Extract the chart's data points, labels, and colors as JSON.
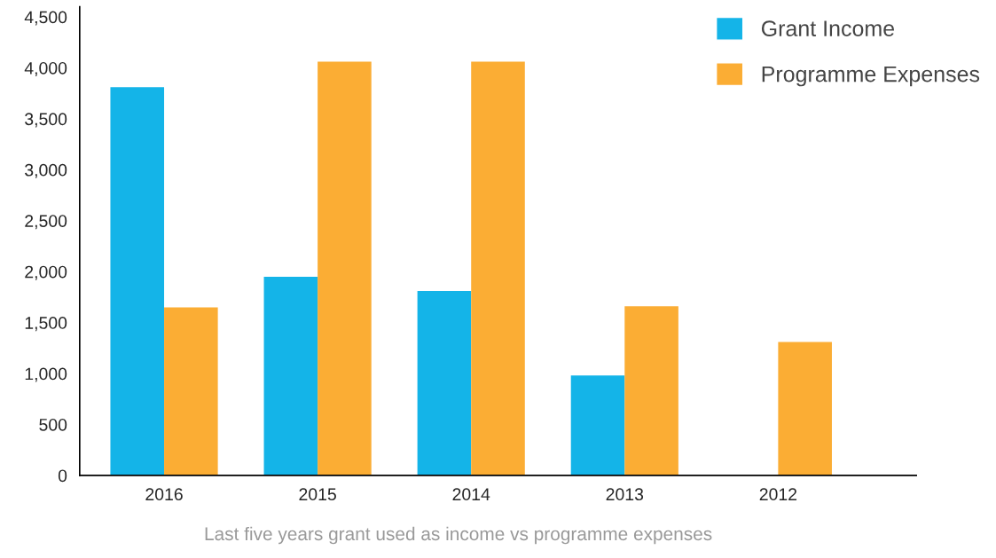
{
  "chart_data": {
    "type": "bar",
    "categories": [
      "2016",
      "2015",
      "2014",
      "2013",
      "2012"
    ],
    "series": [
      {
        "name": "Grant Income",
        "color": "#14b4e8",
        "values": [
          3810,
          1950,
          1810,
          980,
          0
        ]
      },
      {
        "name": "Programme Expenses",
        "color": "#fbad34",
        "values": [
          1650,
          4060,
          4060,
          1660,
          1310
        ]
      }
    ],
    "ylim": [
      0,
      4600
    ],
    "yticks": [
      0,
      500,
      {
        "value": 1000,
        "label": "1,000"
      },
      {
        "value": 1500,
        "label": "1,500"
      },
      {
        "value": 2000,
        "label": "2,000"
      },
      {
        "value": 2500,
        "label": "2,500"
      },
      {
        "value": 3000,
        "label": "3,000"
      },
      {
        "value": 3500,
        "label": "3,500"
      },
      {
        "value": 4000,
        "label": "4,000"
      },
      {
        "value": 4500,
        "label": "4,500"
      }
    ],
    "grid": false,
    "legend": "top right",
    "annotations": [
      "Last five years grant used as income vs programme expenses"
    ]
  }
}
